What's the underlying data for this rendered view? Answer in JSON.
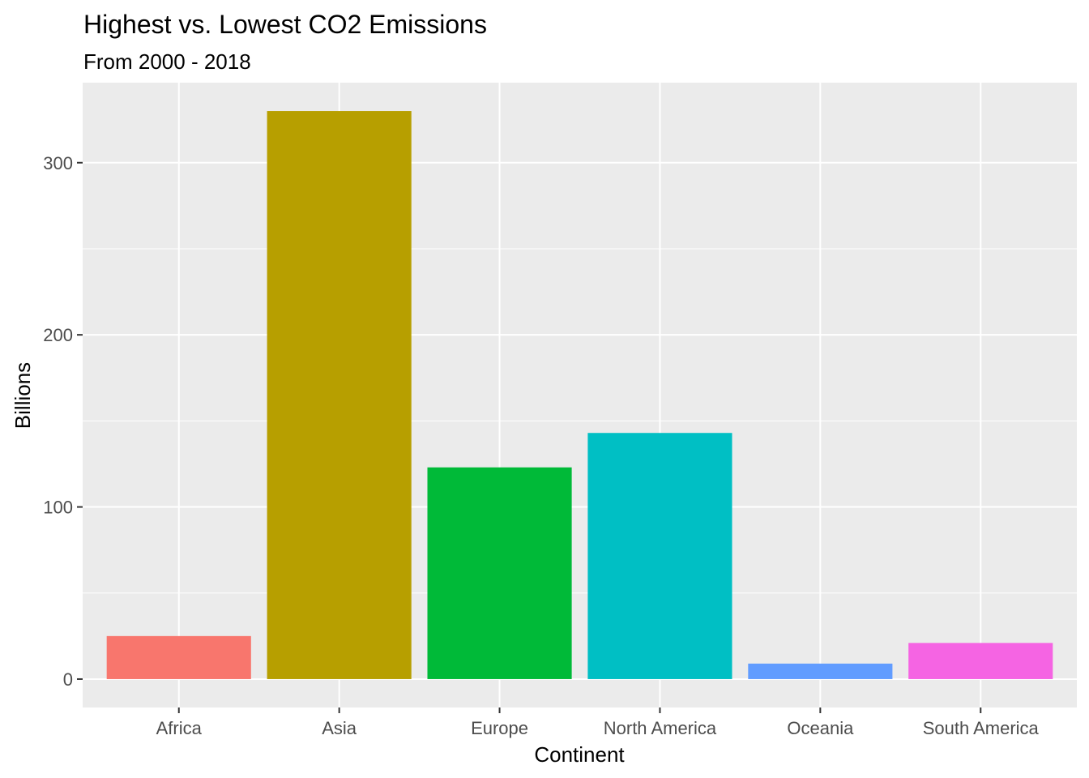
{
  "chart_data": {
    "type": "bar",
    "title": "Highest vs. Lowest CO2 Emissions",
    "subtitle": "From 2000 - 2018",
    "xlabel": "Continent",
    "ylabel": "Billions",
    "categories": [
      "Africa",
      "Asia",
      "Europe",
      "North America",
      "Oceania",
      "South America"
    ],
    "values": [
      25,
      330,
      123,
      143,
      9,
      21
    ],
    "colors": [
      "#F8766D",
      "#B79F00",
      "#00BA38",
      "#00BFC4",
      "#619CFF",
      "#F564E3"
    ],
    "yticks": [
      0,
      100,
      200,
      300
    ],
    "ylim": [
      -16.5,
      346.5
    ],
    "grid": true,
    "legend": "none",
    "panel_background": "#EBEBEB",
    "grid_color": "#FFFFFF"
  }
}
